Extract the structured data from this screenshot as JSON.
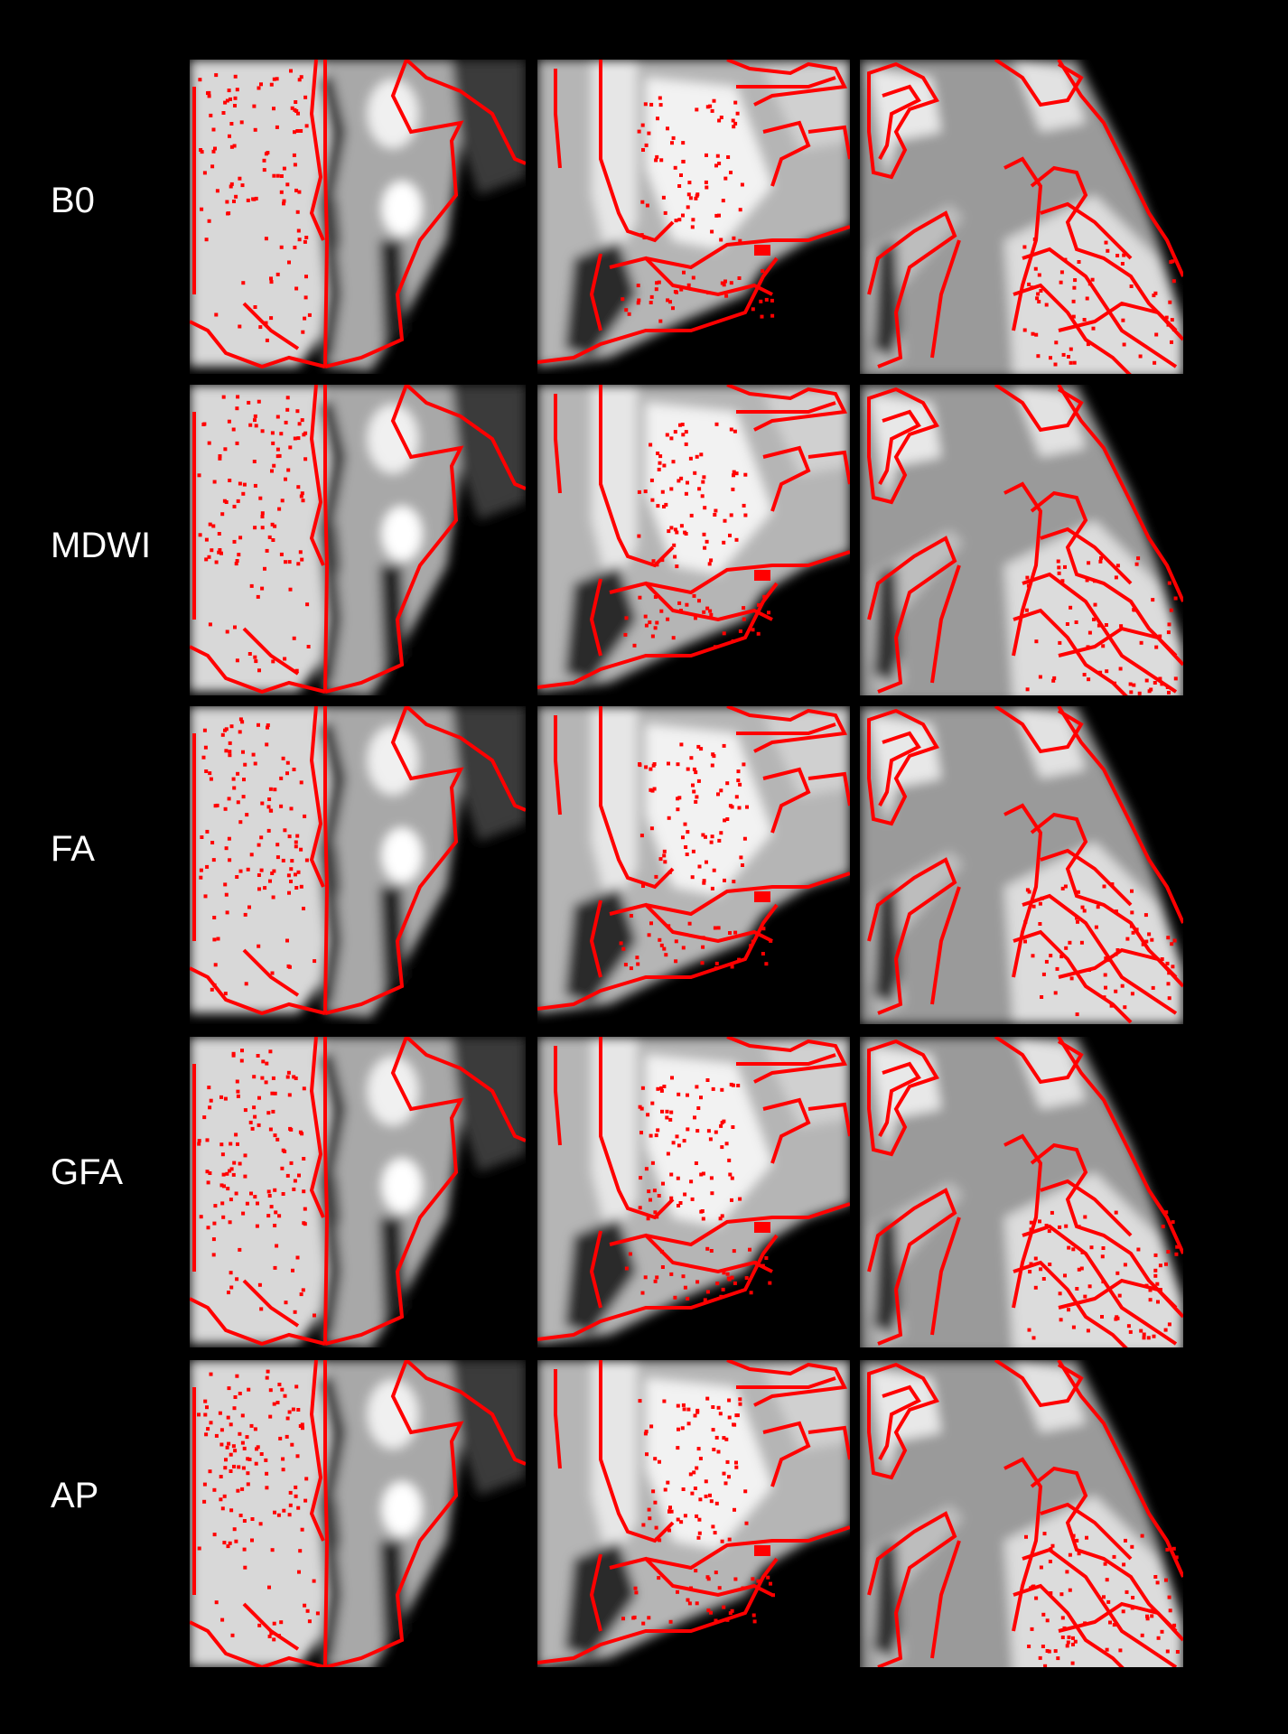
{
  "rows": [
    {
      "label": "B0"
    },
    {
      "label": "MDWI"
    },
    {
      "label": "FA"
    },
    {
      "label": "GFA"
    },
    {
      "label": "AP"
    }
  ],
  "columns": [
    {
      "view": "coronal-crop"
    },
    {
      "view": "sagittal-crop"
    },
    {
      "view": "cortex-crop"
    }
  ],
  "colors": {
    "background": "#000000",
    "overlay": "#ff0000",
    "label_text": "#ffffff"
  }
}
